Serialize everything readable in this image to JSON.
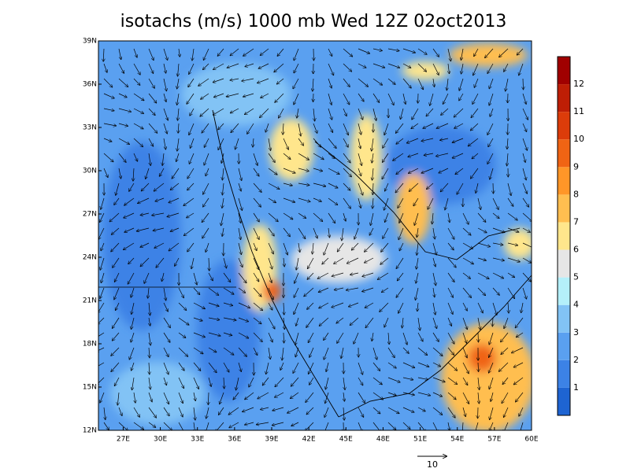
{
  "title": "isotachs (m/s) 1000 mb Wed 12Z 02oct2013",
  "map": {
    "lat_labels": [
      "39N",
      "36N",
      "33N",
      "30N",
      "27N",
      "24N",
      "21N",
      "18N",
      "15N",
      "12N"
    ],
    "lon_labels": [
      "27E",
      "30E",
      "33E",
      "36E",
      "39E",
      "42E",
      "45E",
      "48E",
      "51E",
      "54E",
      "57E",
      "60E"
    ]
  },
  "colorbar": {
    "labels": [
      "1",
      "2",
      "3",
      "4",
      "5",
      "6",
      "7",
      "8",
      "9",
      "10",
      "11",
      "12"
    ]
  },
  "reference_vector": {
    "label": "10"
  }
}
